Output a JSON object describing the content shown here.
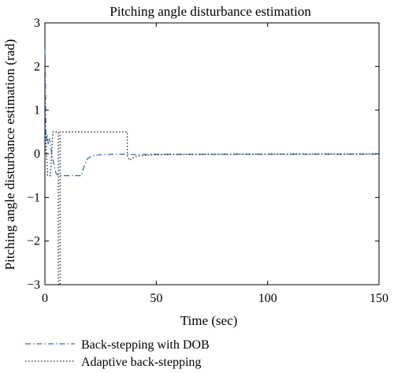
{
  "chart_data": {
    "type": "line",
    "title": "Pitching angle disturbance estimation",
    "xlabel": "Time (sec)",
    "ylabel": "Pitching angle disturbance estimation (rad)",
    "xlim": [
      0,
      150
    ],
    "ylim": [
      -3,
      3
    ],
    "x_ticks": [
      "0",
      "50",
      "100",
      "150"
    ],
    "y_ticks": [
      "3",
      "2",
      "1",
      "0",
      "−1",
      "−2",
      "−3"
    ],
    "grid": false,
    "legend_position": "below",
    "series": [
      {
        "name": "Back-stepping with DOB",
        "color": "#3c6db4",
        "line_style": "dashdot",
        "x": [
          0,
          0.2,
          0.45,
          0.7,
          1.0,
          1.5,
          2.0,
          3.0,
          4.0,
          5.0,
          6.0,
          8.0,
          12.0,
          16.5,
          17.5,
          19.0,
          21.0,
          25.0,
          30.0,
          36.0,
          38.0,
          40.0,
          50.0,
          60.0,
          80.0,
          100.0,
          120.0,
          150.0
        ],
        "y": [
          2.4,
          1.9,
          0.5,
          0.3,
          0.45,
          0.2,
          0.35,
          0.05,
          -0.25,
          -0.45,
          -0.5,
          -0.5,
          -0.5,
          -0.5,
          -0.3,
          -0.12,
          -0.05,
          -0.02,
          -0.01,
          -0.01,
          -0.01,
          -0.02,
          -0.01,
          -0.01,
          -0.01,
          -0.01,
          -0.01,
          -0.01
        ]
      },
      {
        "name": "Adaptive back-stepping",
        "color": "#222222",
        "line_style": "dotted",
        "x": [
          0,
          0.3,
          0.6,
          1.0,
          1.2,
          1.6,
          2.5,
          3.0,
          3.6,
          4.0,
          5.0,
          6.0,
          6.0,
          6.8,
          6.8,
          15.0,
          37.0,
          37.0,
          38.0,
          40.0,
          42.0,
          50.0,
          80.0,
          150.0
        ],
        "y": [
          0.0,
          0.45,
          0.1,
          -0.25,
          -0.5,
          -0.5,
          -0.5,
          0.0,
          0.5,
          0.5,
          0.5,
          0.5,
          -3.0,
          -3.0,
          0.5,
          0.5,
          0.5,
          -0.05,
          -0.15,
          -0.08,
          -0.05,
          -0.02,
          -0.01,
          0.0
        ]
      }
    ]
  }
}
